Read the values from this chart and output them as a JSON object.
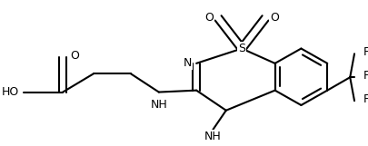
{
  "bg": "#ffffff",
  "lc": "#000000",
  "lw": 1.5,
  "fs": 9.0,
  "xlim": [
    0,
    405
  ],
  "ylim": [
    0,
    161
  ]
}
